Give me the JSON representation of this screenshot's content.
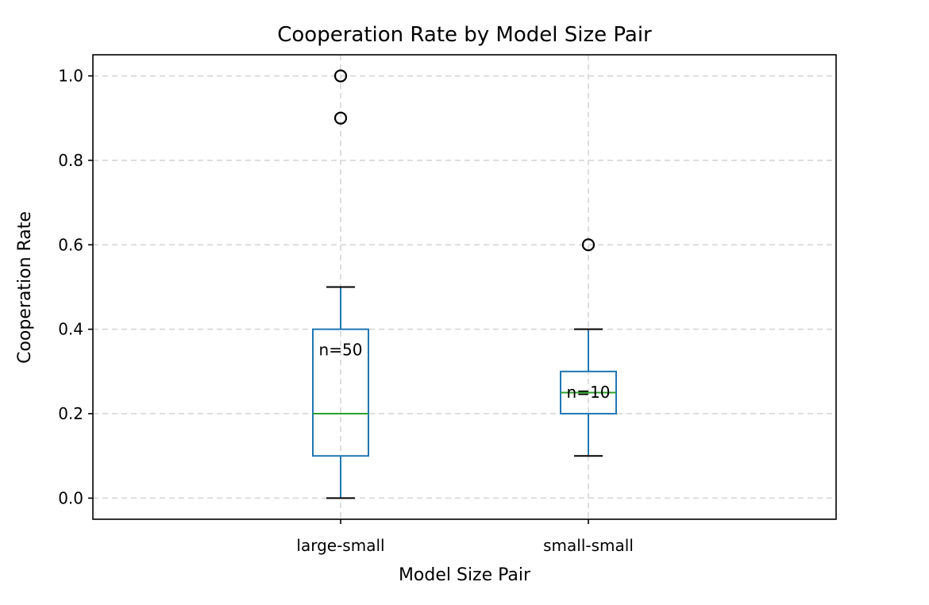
{
  "chart_data": {
    "type": "box",
    "title": "Cooperation Rate by Model Size Pair",
    "xlabel": "Model Size Pair",
    "ylabel": "Cooperation Rate",
    "categories": [
      "large-small",
      "small-small"
    ],
    "ylim": [
      -0.05,
      1.05
    ],
    "yticks": [
      0.0,
      0.2,
      0.4,
      0.6,
      0.8,
      1.0
    ],
    "ytick_labels": [
      "0.0",
      "0.2",
      "0.4",
      "0.6",
      "0.8",
      "1.0"
    ],
    "grid": true,
    "boxes": [
      {
        "category": "large-small",
        "whisker_low": 0.0,
        "q1": 0.1,
        "median": 0.2,
        "q3": 0.4,
        "whisker_high": 0.5,
        "outliers": [
          0.9,
          1.0
        ],
        "n_label": "n=50"
      },
      {
        "category": "small-small",
        "whisker_low": 0.1,
        "q1": 0.2,
        "median": 0.25,
        "q3": 0.3,
        "whisker_high": 0.4,
        "outliers": [
          0.6
        ],
        "n_label": "n=10"
      }
    ],
    "colors": {
      "box": "#1f77b4",
      "median": "#2ca02c",
      "flier": "#000000",
      "grid": "#d3d3d3"
    }
  }
}
